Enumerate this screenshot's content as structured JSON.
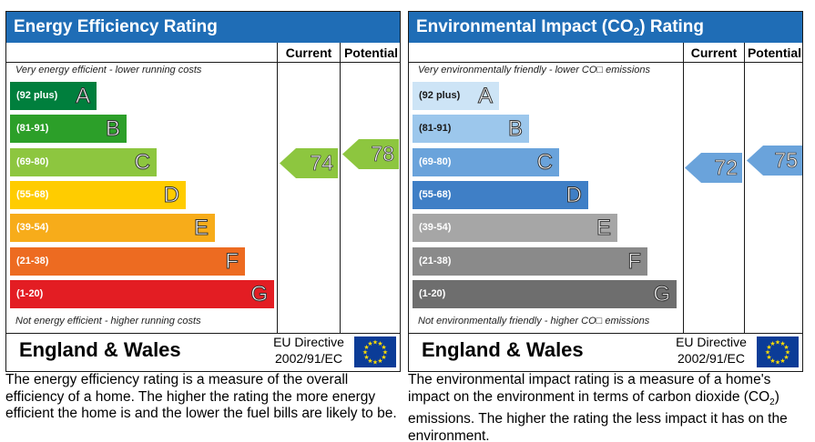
{
  "panels": [
    {
      "id": "ee",
      "title": "Energy Efficiency Rating",
      "current_label": "Current",
      "potential_label": "Potential",
      "top_caption": "Very energy efficient - lower running costs",
      "bottom_caption": "Not energy efficient - higher running costs",
      "region": "England & Wales",
      "directive_line1": "EU Directive",
      "directive_line2": "2002/91/EC",
      "description": "The energy efficiency rating is a measure of the overall efficiency of a home. The higher the rating the more energy efficient the home is and the lower the fuel bills are likely to be.",
      "bands": [
        {
          "range": "(92 plus)",
          "letter": "A",
          "color": "#007f3d"
        },
        {
          "range": "(81-91)",
          "letter": "B",
          "color": "#2c9f29"
        },
        {
          "range": "(69-80)",
          "letter": "C",
          "color": "#8dc63f"
        },
        {
          "range": "(55-68)",
          "letter": "D",
          "color": "#ffcc00"
        },
        {
          "range": "(39-54)",
          "letter": "E",
          "color": "#f7ac1a"
        },
        {
          "range": "(21-38)",
          "letter": "F",
          "color": "#ed6b21"
        },
        {
          "range": "(1-20)",
          "letter": "G",
          "color": "#e31d23"
        }
      ],
      "current": {
        "value": "74",
        "band": "C",
        "color": "#8dc63f"
      },
      "potential": {
        "value": "78",
        "band": "C",
        "color": "#8dc63f"
      }
    },
    {
      "id": "ei",
      "title": "Environmental Impact (CO",
      "title_sub": "2",
      "title_end": ") Rating",
      "current_label": "Current",
      "potential_label": "Potential",
      "top_caption": "Very environmentally friendly - lower CO□ emissions",
      "bottom_caption": "Not environmentally friendly - higher CO□ emissions",
      "region": "England & Wales",
      "directive_line1": "EU Directive",
      "directive_line2": "2002/91/EC",
      "description_a": "The environmental impact rating is a measure of a home's impact on the environment in terms of carbon dioxide (CO",
      "description_sub": "2",
      "description_b": ") emissions. The higher the rating the less impact it has on the environment.",
      "bands": [
        {
          "range": "(92 plus)",
          "letter": "A",
          "color": "#cde4f6"
        },
        {
          "range": "(81-91)",
          "letter": "B",
          "color": "#9cc7ec"
        },
        {
          "range": "(69-80)",
          "letter": "C",
          "color": "#6aa3db"
        },
        {
          "range": "(55-68)",
          "letter": "D",
          "color": "#3f7fc6"
        },
        {
          "range": "(39-54)",
          "letter": "E",
          "color": "#a6a6a6"
        },
        {
          "range": "(21-38)",
          "letter": "F",
          "color": "#8a8a8a"
        },
        {
          "range": "(1-20)",
          "letter": "G",
          "color": "#6e6e6e"
        }
      ],
      "current": {
        "value": "72",
        "band": "C",
        "color": "#6aa3db"
      },
      "potential": {
        "value": "75",
        "band": "C",
        "color": "#6aa3db"
      }
    }
  ],
  "chart_data": [
    {
      "type": "bar",
      "title": "Energy Efficiency Rating",
      "categories": [
        "A",
        "B",
        "C",
        "D",
        "E",
        "F",
        "G"
      ],
      "ranges": [
        "(92 plus)",
        "(81-91)",
        "(69-80)",
        "(55-68)",
        "(39-54)",
        "(21-38)",
        "(1-20)"
      ],
      "current": 74,
      "potential": 78
    },
    {
      "type": "bar",
      "title": "Environmental Impact (CO2) Rating",
      "categories": [
        "A",
        "B",
        "C",
        "D",
        "E",
        "F",
        "G"
      ],
      "ranges": [
        "(92 plus)",
        "(81-91)",
        "(69-80)",
        "(55-68)",
        "(39-54)",
        "(21-38)",
        "(1-20)"
      ],
      "current": 72,
      "potential": 75
    }
  ]
}
